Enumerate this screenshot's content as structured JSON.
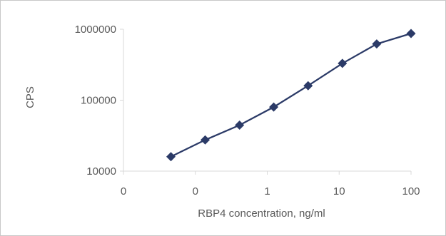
{
  "chart_data": {
    "type": "line",
    "title": "",
    "xlabel": "RBP4 concentration, ng/ml",
    "ylabel": "CPS",
    "x_scale": "log",
    "y_scale": "log",
    "xlim": [
      0.01,
      100
    ],
    "ylim": [
      10000,
      1000000
    ],
    "x_tick_values": [
      0.01,
      0.1,
      1,
      10,
      100
    ],
    "x_tick_labels": [
      "0",
      "0",
      "1",
      "10",
      "100"
    ],
    "y_tick_values": [
      10000,
      100000,
      1000000
    ],
    "y_tick_labels": [
      "10000",
      "100000",
      "1000000"
    ],
    "grid": false,
    "legend": "none",
    "marker": "diamond",
    "color": "#2b3a67",
    "series": [
      {
        "x": [
          0.0457,
          0.137,
          0.412,
          1.23,
          3.7,
          11.1,
          33.3,
          100
        ],
        "y": [
          16000,
          27500,
          44500,
          80000,
          160000,
          330000,
          620000,
          870000
        ]
      }
    ]
  }
}
